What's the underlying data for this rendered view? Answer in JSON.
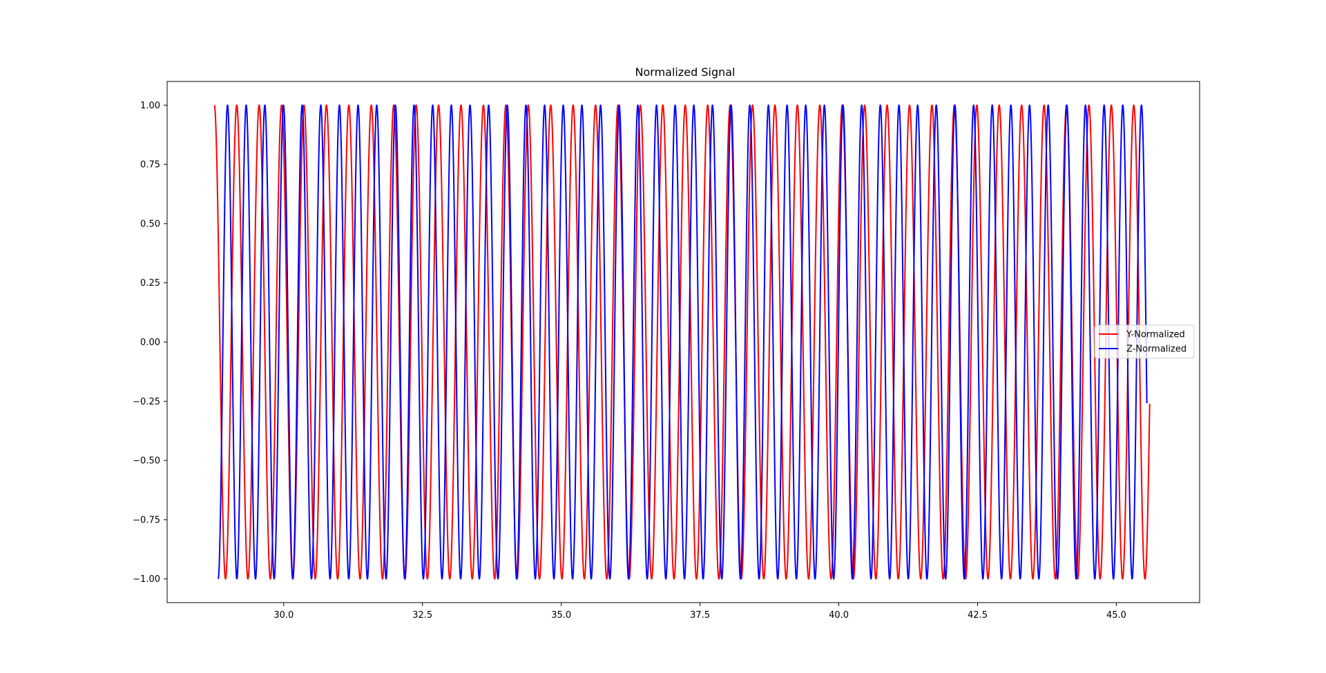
{
  "chart_data": {
    "type": "line",
    "title": "Normalized Signal",
    "xlabel": "",
    "ylabel": "",
    "xlim": [
      27.9,
      46.5
    ],
    "ylim": [
      -1.1,
      1.1
    ],
    "x_ticks": [
      30.0,
      32.5,
      35.0,
      37.5,
      40.0,
      42.5,
      45.0
    ],
    "x_tick_labels": [
      "30.0",
      "32.5",
      "35.0",
      "37.5",
      "40.0",
      "42.5",
      "45.0"
    ],
    "y_ticks": [
      1.0,
      0.75,
      0.5,
      0.25,
      0.0,
      -0.25,
      -0.5,
      -0.75,
      -1.0
    ],
    "y_tick_labels": [
      "1.00",
      "0.75",
      "0.50",
      "0.25",
      "0.00",
      "−0.25",
      "−0.50",
      "−0.75",
      "−1.00"
    ],
    "grid": false,
    "legend_position": "center-right",
    "series": [
      {
        "name": "Y-Normalized",
        "color": "#ff0000",
        "form": "cosine",
        "x_start": 28.75,
        "x_end": 45.6,
        "period": 0.404,
        "phase": 0.0,
        "amplitude": 1.0
      },
      {
        "name": "Z-Normalized",
        "color": "#0000ff",
        "form": "cosine",
        "x_start": 28.82,
        "x_end": 45.55,
        "period": 0.336,
        "phase": 3.14159,
        "amplitude": 1.0
      }
    ]
  }
}
